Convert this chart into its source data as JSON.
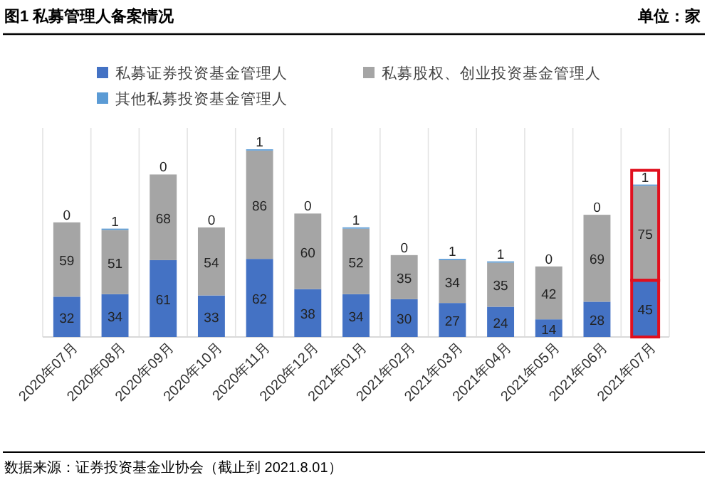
{
  "chart_data": {
    "type": "bar",
    "title": "图1 私募管理人备案情况",
    "annotations": [
      "单位：家",
      "数据来源：证券投资基金业协会（截止到 2021.8.01）"
    ],
    "categories": [
      "2020年07月",
      "2020年08月",
      "2020年09月",
      "2020年10月",
      "2020年11月",
      "2020年12月",
      "2021年01月",
      "2021年02月",
      "2021年03月",
      "2021年04月",
      "2021年05月",
      "2021年06月",
      "2021年07月"
    ],
    "stacked": true,
    "data_labels": true,
    "grid": "x",
    "legend": "top",
    "series": [
      {
        "name": "私募证券投资基金管理人",
        "color": "#4472c4",
        "values": [
          32,
          34,
          61,
          33,
          62,
          38,
          34,
          30,
          27,
          24,
          14,
          28,
          45
        ]
      },
      {
        "name": "私募股权、创业投资基金管理人",
        "color": "#a5a5a5",
        "values": [
          59,
          51,
          68,
          54,
          86,
          60,
          52,
          35,
          34,
          35,
          42,
          69,
          75
        ]
      },
      {
        "name": "其他私募投资基金管理人",
        "color": "#5b9bd5",
        "values": [
          0,
          1,
          0,
          0,
          1,
          0,
          1,
          0,
          1,
          1,
          0,
          0,
          1
        ]
      }
    ]
  }
}
